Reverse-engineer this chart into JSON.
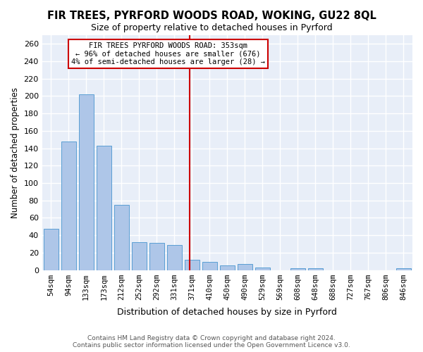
{
  "title": "FIR TREES, PYRFORD WOODS ROAD, WOKING, GU22 8QL",
  "subtitle": "Size of property relative to detached houses in Pyrford",
  "xlabel": "Distribution of detached houses by size in Pyrford",
  "ylabel": "Number of detached properties",
  "bar_color": "#aec6e8",
  "bar_edge_color": "#5a9fd4",
  "background_color": "#e8eef8",
  "grid_color": "#ffffff",
  "categories": [
    "54sqm",
    "94sqm",
    "133sqm",
    "173sqm",
    "212sqm",
    "252sqm",
    "292sqm",
    "331sqm",
    "371sqm",
    "410sqm",
    "450sqm",
    "490sqm",
    "529sqm",
    "569sqm",
    "608sqm",
    "648sqm",
    "688sqm",
    "727sqm",
    "767sqm",
    "806sqm",
    "846sqm"
  ],
  "values": [
    47,
    148,
    202,
    143,
    75,
    32,
    31,
    29,
    12,
    9,
    5,
    7,
    3,
    0,
    2,
    2,
    0,
    0,
    0,
    0,
    2
  ],
  "ylim": [
    0,
    270
  ],
  "yticks": [
    0,
    20,
    40,
    60,
    80,
    100,
    120,
    140,
    160,
    180,
    200,
    220,
    240,
    260
  ],
  "vline_color": "#cc0000",
  "annotation_title": "FIR TREES PYRFORD WOODS ROAD: 353sqm",
  "annotation_line1": "← 96% of detached houses are smaller (676)",
  "annotation_line2": "4% of semi-detached houses are larger (28) →",
  "annotation_box_color": "#cc0000",
  "footer_line1": "Contains HM Land Registry data © Crown copyright and database right 2024.",
  "footer_line2": "Contains public sector information licensed under the Open Government Licence v3.0."
}
